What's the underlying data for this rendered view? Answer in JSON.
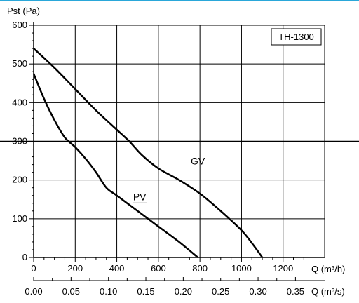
{
  "chart_data": {
    "type": "line",
    "model_label": "TH-1300",
    "ylabel": "Pst (Pa)",
    "xlabel_primary": "Q (m³/h)",
    "xlabel_secondary": "Q (m³/s)",
    "xlim": [
      0,
      1400
    ],
    "ylim": [
      0,
      600
    ],
    "xlim_secondary": [
      0,
      0.389
    ],
    "grid": true,
    "reference_line_y": 300,
    "x_ticks": [
      {
        "value": 0,
        "label": "0"
      },
      {
        "value": 200,
        "label": "200"
      },
      {
        "value": 400,
        "label": "400"
      },
      {
        "value": 600,
        "label": "600"
      },
      {
        "value": 800,
        "label": "800"
      },
      {
        "value": 1000,
        "label": "1000"
      },
      {
        "value": 1200,
        "label": "1200"
      }
    ],
    "x2_ticks": [
      {
        "value": 0.0,
        "label": "0.00"
      },
      {
        "value": 0.05,
        "label": "0.05"
      },
      {
        "value": 0.1,
        "label": "0.10"
      },
      {
        "value": 0.15,
        "label": "0.15"
      },
      {
        "value": 0.2,
        "label": "0.20"
      },
      {
        "value": 0.25,
        "label": "0.25"
      },
      {
        "value": 0.3,
        "label": "0.30"
      },
      {
        "value": 0.35,
        "label": "0.35"
      }
    ],
    "y_ticks": [
      {
        "value": 0,
        "label": "0"
      },
      {
        "value": 100,
        "label": "100"
      },
      {
        "value": 200,
        "label": "200"
      },
      {
        "value": 300,
        "label": "300"
      },
      {
        "value": 400,
        "label": "400"
      },
      {
        "value": 500,
        "label": "500"
      },
      {
        "value": 600,
        "label": "600"
      }
    ],
    "series": [
      {
        "name": "GV",
        "x": [
          0,
          100,
          200,
          300,
          400,
          460,
          520,
          600,
          700,
          800,
          900,
          1000,
          1060,
          1100
        ],
        "y": [
          540,
          490,
          435,
          380,
          330,
          300,
          265,
          230,
          200,
          165,
          120,
          70,
          30,
          0
        ]
      },
      {
        "name": "PV",
        "x": [
          0,
          50,
          100,
          150,
          200,
          250,
          300,
          350,
          400,
          500,
          600,
          700,
          790
        ],
        "y": [
          475,
          410,
          355,
          310,
          285,
          255,
          220,
          180,
          160,
          120,
          80,
          40,
          0
        ]
      }
    ]
  }
}
